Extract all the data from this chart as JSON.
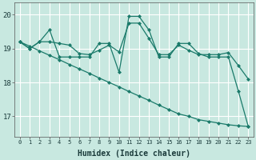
{
  "xlabel": "Humidex (Indice chaleur)",
  "bg_color": "#c8e8e0",
  "grid_color": "#ffffff",
  "line_color": "#1a7a6a",
  "xlim": [
    -0.5,
    23.5
  ],
  "ylim": [
    16.4,
    20.35
  ],
  "yticks": [
    17,
    18,
    19,
    20
  ],
  "xticks": [
    0,
    1,
    2,
    3,
    4,
    5,
    6,
    7,
    8,
    9,
    10,
    11,
    12,
    13,
    14,
    15,
    16,
    17,
    18,
    19,
    20,
    21,
    22,
    23
  ],
  "series1_zigzag": [
    19.2,
    19.0,
    19.2,
    19.55,
    18.75,
    18.75,
    18.75,
    18.75,
    19.15,
    19.15,
    18.3,
    19.95,
    19.95,
    19.55,
    18.75,
    18.75,
    19.15,
    19.15,
    18.85,
    18.75,
    18.75,
    18.75,
    17.75,
    16.7
  ],
  "series2_smooth": [
    19.2,
    19.0,
    19.2,
    19.2,
    19.15,
    19.1,
    18.85,
    18.82,
    18.95,
    19.1,
    18.9,
    19.75,
    19.75,
    19.3,
    18.82,
    18.82,
    19.1,
    18.95,
    18.82,
    18.82,
    18.82,
    18.88,
    18.5,
    18.1
  ],
  "series3_diagonal": [
    19.2,
    19.07,
    18.93,
    18.8,
    18.67,
    18.53,
    18.4,
    18.27,
    18.13,
    18.0,
    17.87,
    17.73,
    17.6,
    17.47,
    17.33,
    17.2,
    17.07,
    17.0,
    16.9,
    16.85,
    16.8,
    16.75,
    16.72,
    16.7
  ]
}
